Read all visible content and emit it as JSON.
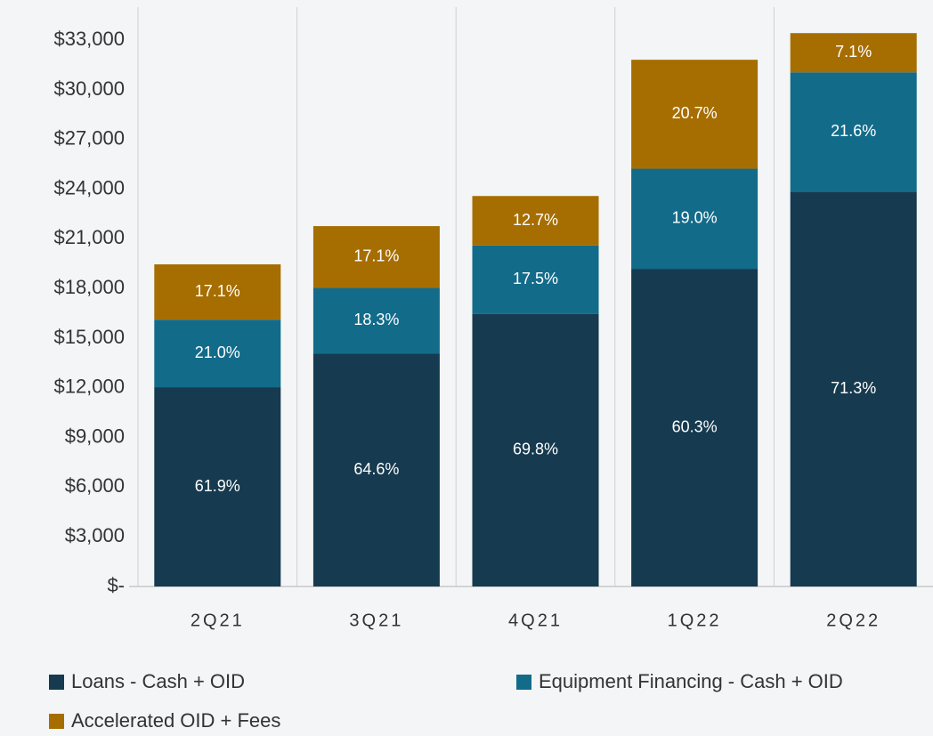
{
  "chart_data": {
    "type": "stacked_bar",
    "categories": [
      "2Q21",
      "3Q21",
      "4Q21",
      "1Q22",
      "2Q22"
    ],
    "series": [
      {
        "name": "Loans - Cash + OID",
        "color": "#163a4f",
        "values": [
          12040,
          14060,
          16470,
          19190,
          23840
        ],
        "labels": [
          "61.9%",
          "64.6%",
          "69.8%",
          "60.3%",
          "71.3%"
        ]
      },
      {
        "name": "Equipment Financing - Cash + OID",
        "color": "#136b8a",
        "values": [
          4080,
          3980,
          4130,
          6050,
          7220
        ],
        "labels": [
          "21.0%",
          "18.3%",
          "17.5%",
          "19.0%",
          "21.6%"
        ]
      },
      {
        "name": "Accelerated OID + Fees",
        "color": "#a66e00",
        "values": [
          3340,
          3730,
          2990,
          6580,
          2370
        ],
        "labels": [
          "17.1%",
          "17.1%",
          "12.7%",
          "20.7%",
          "7.1%"
        ]
      }
    ],
    "ylim": [
      0,
      35000
    ],
    "yticks": [
      {
        "value": 0,
        "label": "$-"
      },
      {
        "value": 3000,
        "label": "$3,000"
      },
      {
        "value": 6000,
        "label": "$6,000"
      },
      {
        "value": 9000,
        "label": "$9,000"
      },
      {
        "value": 12000,
        "label": "$12,000"
      },
      {
        "value": 15000,
        "label": "$15,000"
      },
      {
        "value": 18000,
        "label": "$18,000"
      },
      {
        "value": 21000,
        "label": "$21,000"
      },
      {
        "value": 24000,
        "label": "$24,000"
      },
      {
        "value": 27000,
        "label": "$27,000"
      },
      {
        "value": 30000,
        "label": "$30,000"
      },
      {
        "value": 33000,
        "label": "$33,000"
      }
    ],
    "grid": false
  }
}
